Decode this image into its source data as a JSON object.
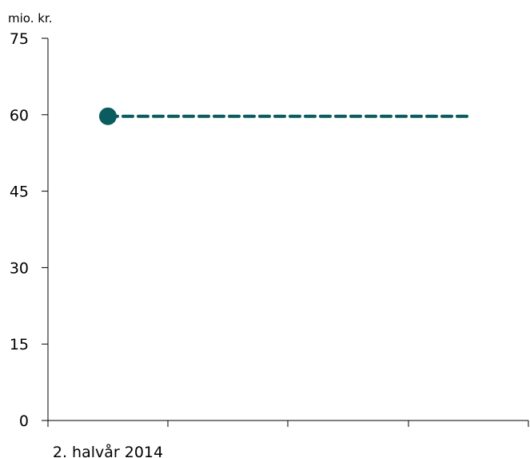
{
  "chart_data": {
    "type": "line",
    "unit_label": "mio. kr.",
    "ylim": [
      0,
      75
    ],
    "y_ticks": [
      0,
      15,
      30,
      45,
      60,
      75
    ],
    "x_tick_labels": [
      "2. halvår 2014"
    ],
    "series": [
      {
        "style": "dashed",
        "color": "#0b5c5e",
        "x": [
          0,
          3
        ],
        "y": [
          59.7,
          59.7
        ]
      }
    ],
    "markers": [
      {
        "x": 0,
        "y": 59.7,
        "color": "#0b5c5e"
      }
    ],
    "grid": false,
    "legend": "none"
  }
}
